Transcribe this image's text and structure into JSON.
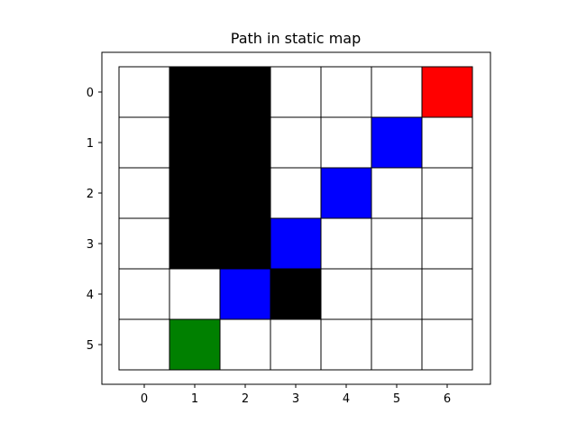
{
  "chart_data": {
    "type": "heatmap",
    "title": "Path in static map",
    "xlabel": "",
    "ylabel": "",
    "x_ticks": [
      "0",
      "1",
      "2",
      "3",
      "4",
      "5",
      "6"
    ],
    "y_ticks": [
      "0",
      "1",
      "2",
      "3",
      "4",
      "5"
    ],
    "xlim": [
      -0.5,
      6.5
    ],
    "ylim": [
      5.5,
      -0.5
    ],
    "grid": [
      [
        "free",
        "obstacle",
        "obstacle",
        "free",
        "free",
        "free",
        "goal"
      ],
      [
        "free",
        "obstacle",
        "obstacle",
        "free",
        "free",
        "path",
        "free"
      ],
      [
        "free",
        "obstacle",
        "obstacle",
        "free",
        "path",
        "free",
        "free"
      ],
      [
        "free",
        "obstacle",
        "obstacle",
        "path",
        "free",
        "free",
        "free"
      ],
      [
        "free",
        "free",
        "path",
        "obstacle",
        "free",
        "free",
        "free"
      ],
      [
        "free",
        "start",
        "free",
        "free",
        "free",
        "free",
        "free"
      ]
    ],
    "colors": {
      "free": "#ffffff",
      "obstacle": "#000000",
      "path": "#0000ff",
      "start": "#008000",
      "goal": "#ff0000",
      "cell_edge": "#000000"
    }
  }
}
